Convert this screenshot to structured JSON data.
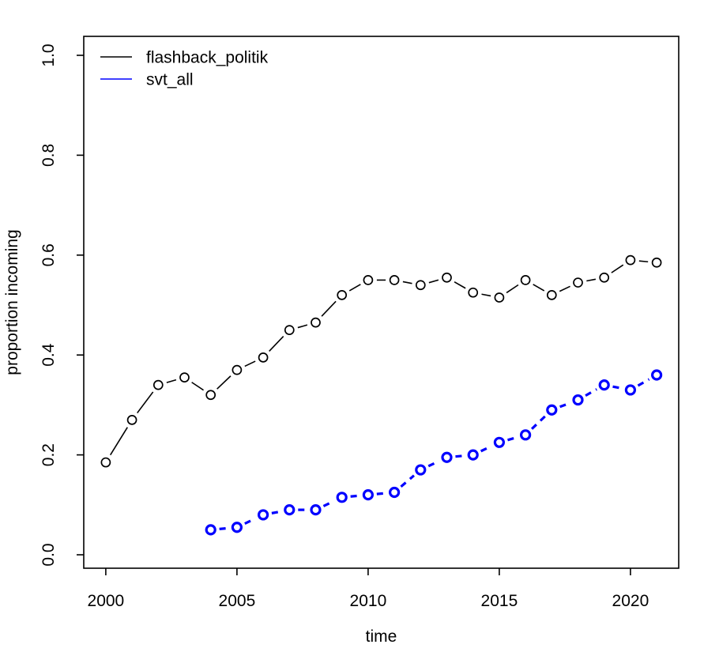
{
  "figure": {
    "background": "#ffffff",
    "frame_color": "#000000",
    "text_color": "#000000"
  },
  "chart_data": {
    "type": "line",
    "title": "",
    "xlabel": "time",
    "ylabel": "proportion incoming",
    "grid": false,
    "xlim": [
      1999.16,
      2021.84
    ],
    "ylim": [
      -0.03,
      1.04
    ],
    "x_ticks": [
      2000,
      2005,
      2010,
      2015,
      2020
    ],
    "x_tick_labels": [
      "2000",
      "2005",
      "2010",
      "2015",
      "2020"
    ],
    "y_ticks": [
      0.0,
      0.2,
      0.4,
      0.6,
      0.8,
      1.0
    ],
    "y_tick_labels": [
      "0.0",
      "0.2",
      "0.4",
      "0.6",
      "0.8",
      "1.0"
    ],
    "x": [
      2000,
      2001,
      2002,
      2003,
      2004,
      2005,
      2006,
      2007,
      2008,
      2009,
      2010,
      2011,
      2012,
      2013,
      2014,
      2015,
      2016,
      2017,
      2018,
      2019,
      2020,
      2021
    ],
    "series": [
      {
        "name": "flashback_politik",
        "color": "#000000",
        "line_style": "solid",
        "line_width": 1.6,
        "marker": "open-circle",
        "marker_stroke_width": 1.7,
        "values": [
          0.185,
          0.27,
          0.34,
          0.355,
          0.32,
          0.37,
          0.395,
          0.45,
          0.465,
          0.52,
          0.55,
          0.55,
          0.54,
          0.555,
          0.525,
          0.515,
          0.55,
          0.52,
          0.545,
          0.555,
          0.59,
          0.585
        ]
      },
      {
        "name": "svt_all",
        "color": "#0000ff",
        "line_style": "dashed",
        "line_width": 3.2,
        "marker": "open-circle",
        "marker_stroke_width": 3.2,
        "values": [
          null,
          null,
          null,
          null,
          0.05,
          0.055,
          0.08,
          0.09,
          0.09,
          0.115,
          0.12,
          0.125,
          0.17,
          0.195,
          0.2,
          0.225,
          0.24,
          0.29,
          0.31,
          0.34,
          0.33,
          0.36
        ]
      }
    ],
    "legend": {
      "position": "top-left",
      "entries": [
        {
          "label": "flashback_politik",
          "color": "#000000",
          "line_style": "solid"
        },
        {
          "label": "svt_all",
          "color": "#0000ff",
          "line_style": "solid"
        }
      ]
    }
  }
}
